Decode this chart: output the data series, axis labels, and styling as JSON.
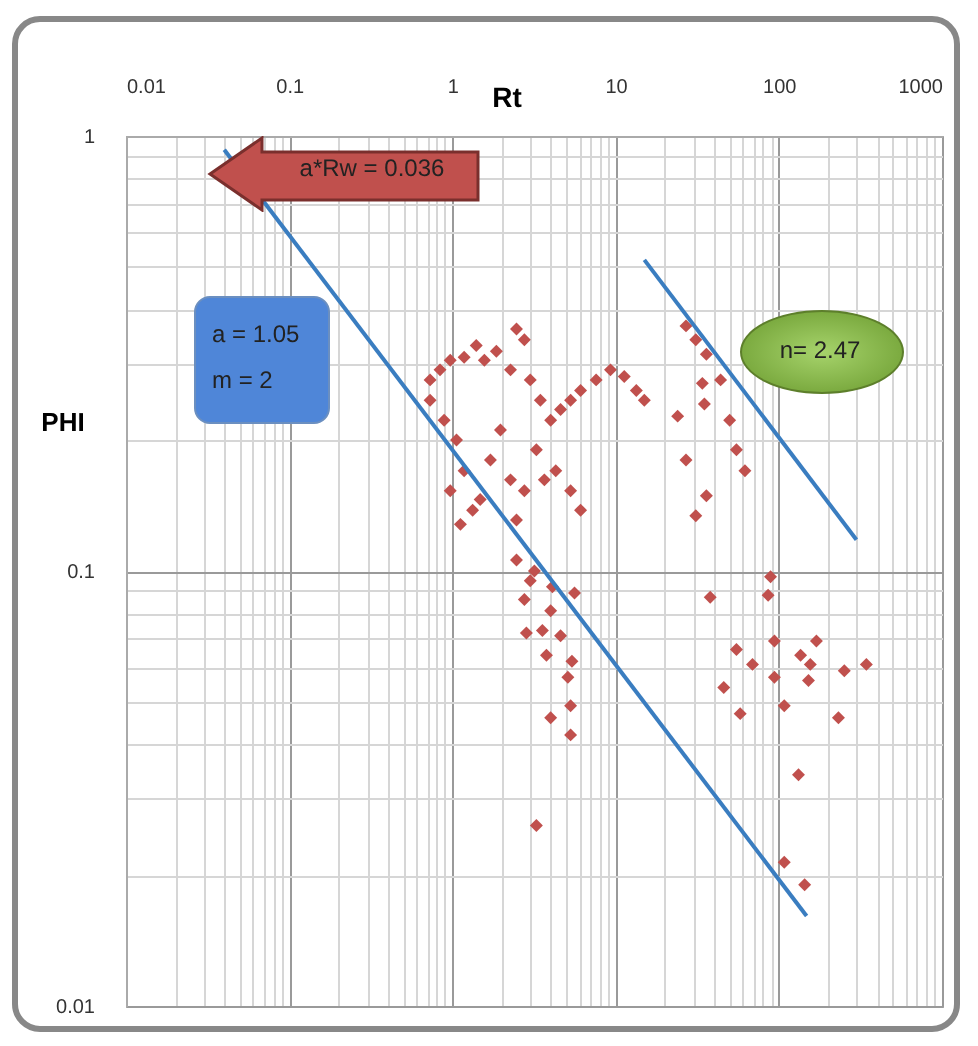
{
  "chart_data": {
    "type": "scatter",
    "xlabel": "Rt",
    "ylabel": "PHI",
    "xlim": [
      0.01,
      1000
    ],
    "ylim": [
      0.01,
      1
    ],
    "xticks": [
      0.01,
      0.1,
      1,
      10,
      100,
      1000
    ],
    "yticks": [
      0.01,
      0.1,
      1
    ],
    "log": "xy",
    "grid": true,
    "legend": false,
    "annotations": [
      "a*Rw = 0.036",
      "a = 1.05",
      "m = 2",
      "n= 2.47"
    ],
    "series": [
      {
        "color": "#c0504d",
        "marker": "diamond",
        "x": [
          0.73,
          0.84,
          0.97,
          1.18,
          1.4,
          1.57,
          1.86,
          2.27,
          2.47,
          2.76,
          3.0,
          3.46,
          4.0,
          4.6,
          5.3,
          6.1,
          7.6,
          9.3,
          11.3,
          13.4,
          15,
          0.73,
          0.89,
          1.06,
          1.18,
          1.33,
          1.48,
          1.71,
          1.97,
          2.27,
          2.47,
          2.76,
          3.27,
          3.66,
          4.3,
          5.3,
          6.1,
          2.47,
          2.76,
          3.0,
          3.18,
          4.1,
          5.6,
          4.0,
          2.84,
          3.56,
          3.77,
          4.6,
          5.4,
          5.1,
          5.3,
          4.0,
          5.3,
          3.27,
          38,
          89,
          86,
          94,
          55,
          69,
          46,
          94,
          108,
          58,
          136,
          170,
          156,
          152,
          252,
          232,
          344,
          132,
          108,
          144,
          27,
          31,
          36,
          34,
          35,
          24,
          27,
          36,
          31,
          44,
          50,
          55,
          62,
          0.97,
          1.12
        ],
        "values": [
          0.275,
          0.29,
          0.305,
          0.31,
          0.33,
          0.305,
          0.32,
          0.29,
          0.36,
          0.34,
          0.275,
          0.247,
          0.222,
          0.235,
          0.247,
          0.26,
          0.275,
          0.29,
          0.28,
          0.26,
          0.247,
          0.247,
          0.222,
          0.2,
          0.17,
          0.138,
          0.146,
          0.18,
          0.211,
          0.162,
          0.131,
          0.153,
          0.19,
          0.162,
          0.17,
          0.153,
          0.138,
          0.106,
          0.086,
          0.095,
          0.1,
          0.092,
          0.089,
          0.081,
          0.072,
          0.073,
          0.064,
          0.071,
          0.062,
          0.057,
          0.049,
          0.046,
          0.042,
          0.026,
          0.087,
          0.097,
          0.088,
          0.069,
          0.066,
          0.061,
          0.054,
          0.057,
          0.049,
          0.047,
          0.064,
          0.069,
          0.061,
          0.056,
          0.059,
          0.046,
          0.061,
          0.034,
          0.0214,
          0.019,
          0.366,
          0.34,
          0.315,
          0.27,
          0.242,
          0.227,
          0.18,
          0.149,
          0.134,
          0.275,
          0.222,
          0.19,
          0.17,
          0.153,
          0.128
        ]
      },
      {
        "type": "line",
        "color": "#3a7dc0",
        "x": [
          0.04,
          148
        ],
        "values": [
          0.93,
          0.0161
        ]
      },
      {
        "type": "line",
        "color": "#3a7dc0",
        "x": [
          15,
          299
        ],
        "values": [
          0.519,
          0.118
        ]
      }
    ]
  }
}
